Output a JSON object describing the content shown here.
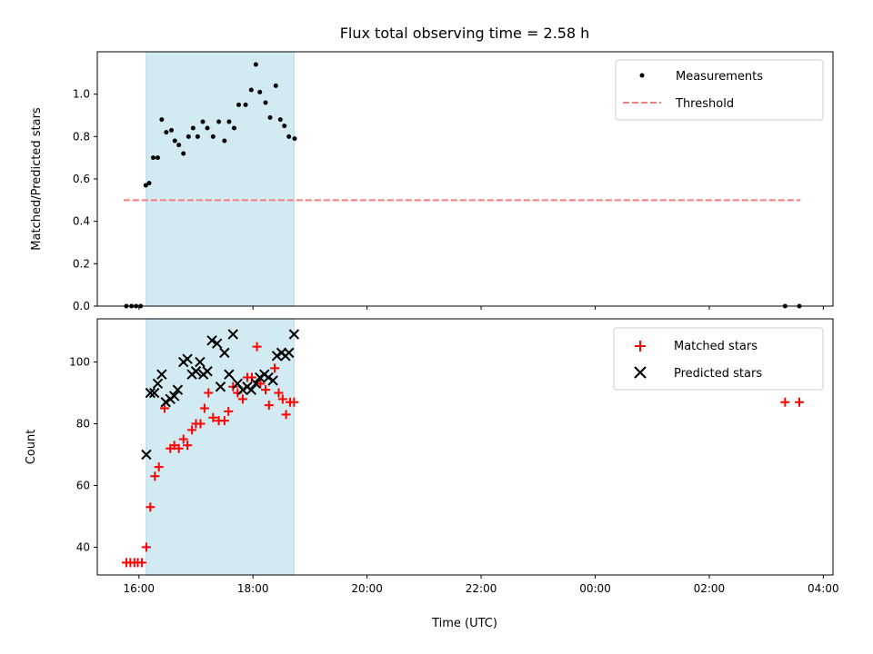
{
  "chart_data": {
    "title": "Flux total observing time = 2.58 h",
    "xlabel": "Time (UTC)",
    "x_ticks": [
      "16:00",
      "18:00",
      "20:00",
      "22:00",
      "00:00",
      "02:00",
      "04:00"
    ],
    "x_range_hours": [
      15.27,
      28.17
    ],
    "shaded_interval_hours": [
      16.13,
      18.72
    ],
    "shade_color": "#add8e6",
    "panels": [
      {
        "type": "scatter",
        "ylabel": "Matched/Predicted stars",
        "ylim": [
          0,
          1.2
        ],
        "yticks": [
          "0.0",
          "0.2",
          "0.4",
          "0.6",
          "0.8",
          "1.0"
        ],
        "legend_position": "upper right",
        "series": [
          {
            "name": "Measurements",
            "marker": "dot",
            "color": "#000000",
            "x": [
              15.78,
              15.87,
              15.95,
              16.03,
              16.12,
              16.18,
              16.25,
              16.33,
              16.4,
              16.48,
              16.57,
              16.63,
              16.7,
              16.78,
              16.87,
              16.95,
              17.03,
              17.12,
              17.2,
              17.3,
              17.4,
              17.5,
              17.58,
              17.67,
              17.75,
              17.87,
              17.97,
              18.05,
              18.12,
              18.22,
              18.3,
              18.4,
              18.48,
              18.55,
              18.63,
              18.73,
              27.33,
              27.58
            ],
            "y": [
              0.0,
              0.0,
              0.0,
              0.0,
              0.57,
              0.58,
              0.7,
              0.7,
              0.88,
              0.82,
              0.83,
              0.78,
              0.76,
              0.72,
              0.8,
              0.84,
              0.8,
              0.87,
              0.84,
              0.8,
              0.87,
              0.78,
              0.87,
              0.84,
              0.95,
              0.95,
              1.02,
              1.14,
              1.01,
              0.96,
              0.89,
              1.04,
              0.88,
              0.85,
              0.8,
              0.79,
              0.0,
              0.0
            ]
          },
          {
            "name": "Threshold",
            "type": "line",
            "style": "dashed",
            "color": "#f08080",
            "x": [
              15.73,
              27.6
            ],
            "y": [
              0.5,
              0.5
            ]
          }
        ]
      },
      {
        "type": "scatter",
        "ylabel": "Count",
        "ylim": [
          31,
          114
        ],
        "yticks": [
          "40",
          "60",
          "80",
          "100"
        ],
        "ytick_values": [
          40,
          60,
          80,
          100
        ],
        "legend_position": "upper right",
        "series": [
          {
            "name": "Matched stars",
            "marker": "plus",
            "color": "#ff0000",
            "x": [
              15.78,
              15.85,
              15.92,
              15.98,
              16.05,
              16.13,
              16.2,
              16.28,
              16.35,
              16.45,
              16.55,
              16.62,
              16.7,
              16.78,
              16.85,
              16.93,
              17.0,
              17.08,
              17.15,
              17.22,
              17.3,
              17.4,
              17.5,
              17.57,
              17.65,
              17.73,
              17.82,
              17.9,
              17.98,
              18.07,
              18.13,
              18.22,
              18.28,
              18.38,
              18.45,
              18.52,
              18.58,
              18.65,
              18.72,
              27.33,
              27.58
            ],
            "y": [
              35,
              35,
              35,
              35,
              35,
              40,
              53,
              63,
              66,
              85,
              72,
              73,
              72,
              75,
              73,
              78,
              80,
              80,
              85,
              90,
              82,
              81,
              81,
              84,
              92,
              90,
              88,
              95,
              95,
              105,
              93,
              91,
              86,
              98,
              90,
              88,
              83,
              87,
              87,
              87,
              87
            ]
          },
          {
            "name": "Predicted stars",
            "marker": "x",
            "color": "#000000",
            "x": [
              16.13,
              16.2,
              16.27,
              16.33,
              16.4,
              16.47,
              16.55,
              16.62,
              16.68,
              16.78,
              16.85,
              16.93,
              17.0,
              17.07,
              17.13,
              17.2,
              17.28,
              17.37,
              17.43,
              17.5,
              17.58,
              17.65,
              17.73,
              17.82,
              17.9,
              17.97,
              18.05,
              18.12,
              18.2,
              18.27,
              18.35,
              18.42,
              18.5,
              18.57,
              18.63,
              18.72
            ],
            "y": [
              70,
              90,
              90,
              93,
              96,
              87,
              88,
              89,
              91,
              100,
              101,
              96,
              97,
              100,
              96,
              97,
              107,
              106,
              92,
              103,
              96,
              109,
              93,
              91,
              92,
              91,
              93,
              95,
              96,
              95,
              94,
              102,
              103,
              102,
              103,
              109
            ]
          }
        ]
      }
    ]
  }
}
